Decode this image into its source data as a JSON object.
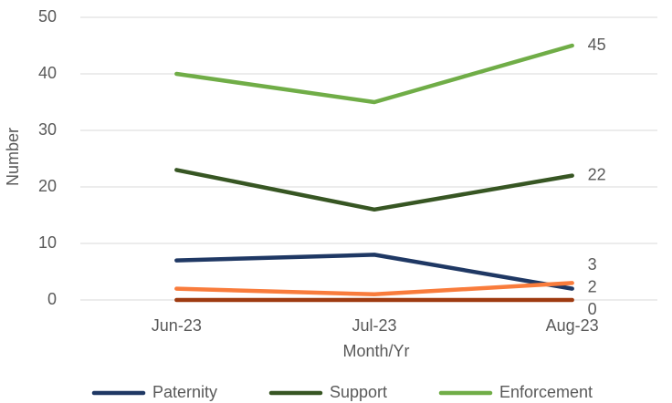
{
  "chart_data": {
    "type": "line",
    "x_label": "Month/Yr",
    "y_label": "Number",
    "categories": [
      "Jun-23",
      "Jul-23",
      "Aug-23"
    ],
    "series": [
      {
        "name": "Paternity",
        "color": "#1f3864",
        "values": [
          7,
          8,
          2
        ]
      },
      {
        "name": "Support",
        "color": "#375623",
        "values": [
          23,
          16,
          22
        ]
      },
      {
        "name": "Enforcement",
        "color": "#70ad47",
        "values": [
          40,
          35,
          45
        ]
      },
      {
        "color": "#f97c3c",
        "values": [
          2,
          1,
          3
        ]
      },
      {
        "color": "#9e3a10",
        "values": [
          0,
          0,
          0
        ]
      }
    ],
    "ylim": [
      0,
      50
    ],
    "yticks": [
      0,
      10,
      20,
      30,
      40,
      50
    ],
    "grid": true,
    "label_last": true,
    "legend": "bottom"
  }
}
